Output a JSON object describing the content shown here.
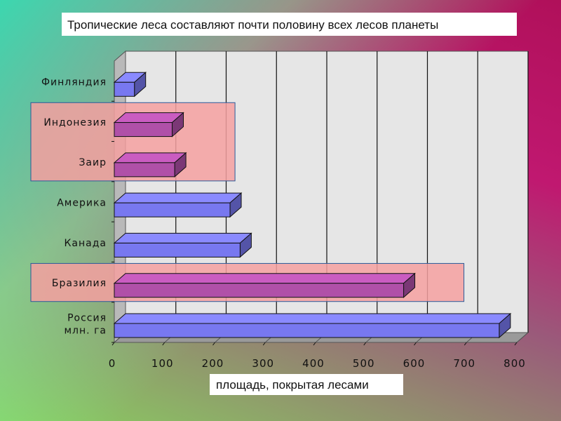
{
  "title": "Тропические леса составляют почти половину всех лесов планеты",
  "chart_data": {
    "type": "bar",
    "orientation": "horizontal",
    "title": "Тропические леса составляют почти половину всех лесов планеты",
    "xlabel": "площадь, покрытая лесами",
    "unit_label_lines": [
      "млн. га"
    ],
    "categories": [
      "Россия",
      "Бразилия",
      "Канада",
      "Америка",
      "Заир",
      "Индонезия",
      "Финляндия"
    ],
    "values": [
      765,
      575,
      250,
      230,
      120,
      115,
      40
    ],
    "highlighted": [
      "Бразилия",
      "Заир",
      "Индонезия"
    ],
    "xlim": [
      0,
      800
    ],
    "xticks": [
      0,
      100,
      200,
      300,
      400,
      500,
      600,
      700,
      800
    ],
    "grid": true,
    "colors": {
      "bar_normal": "#7878f0",
      "bar_highlight": "#b050a8",
      "highlight_box": "#f4a0a0",
      "plot_bg": "#e6e6e6"
    }
  }
}
